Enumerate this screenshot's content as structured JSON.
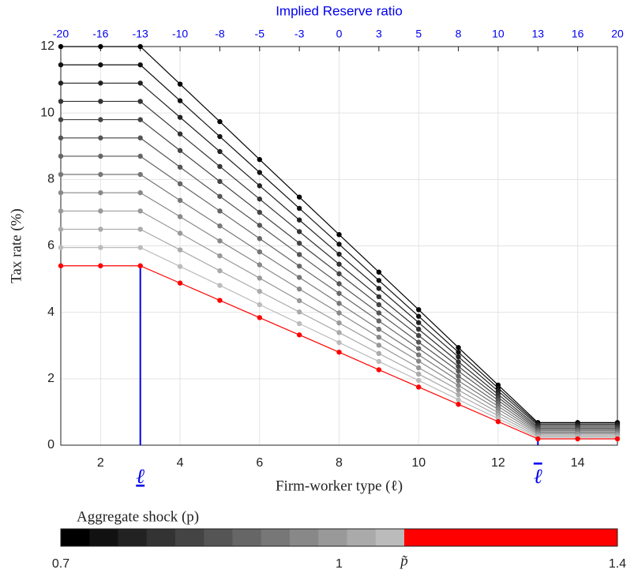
{
  "chart_data": {
    "type": "line",
    "title": "Implied Reserve ratio",
    "xlabel": "Firm-worker type (ℓ)",
    "ylabel": "Tax rate (%)",
    "x": [
      1,
      2,
      3,
      4,
      5,
      6,
      7,
      8,
      9,
      10,
      11,
      12,
      13,
      14,
      15
    ],
    "xlim": [
      1,
      15
    ],
    "ylim": [
      0,
      12
    ],
    "xticks": [
      2,
      4,
      6,
      8,
      10,
      12,
      14
    ],
    "yticks": [
      0,
      2,
      4,
      6,
      8,
      10,
      12
    ],
    "x2ticks": [
      {
        "value": 1,
        "label": "-20"
      },
      {
        "value": 2,
        "label": "-16"
      },
      {
        "value": 3,
        "label": "-13"
      },
      {
        "value": 4,
        "label": "-10"
      },
      {
        "value": 5,
        "label": "-8"
      },
      {
        "value": 6,
        "label": "-5"
      },
      {
        "value": 7,
        "label": "-3"
      },
      {
        "value": 8,
        "label": "0"
      },
      {
        "value": 9,
        "label": "3"
      },
      {
        "value": 10,
        "label": "5"
      },
      {
        "value": 11,
        "label": "8"
      },
      {
        "value": 12,
        "label": "10"
      },
      {
        "value": 13,
        "label": "13"
      },
      {
        "value": 14,
        "label": "16"
      },
      {
        "value": 15,
        "label": "20"
      }
    ],
    "grid": true,
    "series": [
      {
        "color": "#000000",
        "values": [
          12,
          12,
          12,
          10.87,
          9.74,
          8.6,
          7.47,
          6.34,
          5.21,
          4.08,
          2.94,
          1.81,
          0.68,
          0.68,
          0.68
        ]
      },
      {
        "color": "#111111",
        "values": [
          11.45,
          11.45,
          11.45,
          10.37,
          9.29,
          8.21,
          7.13,
          6.05,
          4.96,
          3.88,
          2.8,
          1.72,
          0.64,
          0.64,
          0.64
        ]
      },
      {
        "color": "#222222",
        "values": [
          10.9,
          10.9,
          10.9,
          9.87,
          8.84,
          7.81,
          6.78,
          5.75,
          4.72,
          3.69,
          2.66,
          1.63,
          0.6,
          0.6,
          0.6
        ]
      },
      {
        "color": "#333333",
        "values": [
          10.35,
          10.35,
          10.35,
          9.37,
          8.39,
          7.41,
          6.43,
          5.45,
          4.47,
          3.49,
          2.51,
          1.53,
          0.55,
          0.55,
          0.55
        ]
      },
      {
        "color": "#444444",
        "values": [
          9.8,
          9.8,
          9.8,
          8.87,
          7.94,
          7.01,
          6.08,
          5.16,
          4.23,
          3.3,
          2.37,
          1.44,
          0.51,
          0.51,
          0.51
        ]
      },
      {
        "color": "#555555",
        "values": [
          9.25,
          9.25,
          9.25,
          8.37,
          7.49,
          6.62,
          5.74,
          4.86,
          3.98,
          3.1,
          2.23,
          1.35,
          0.47,
          0.47,
          0.47
        ]
      },
      {
        "color": "#666666",
        "values": [
          8.7,
          8.7,
          8.7,
          7.87,
          7.05,
          6.22,
          5.39,
          4.57,
          3.74,
          2.91,
          2.08,
          1.26,
          0.43,
          0.43,
          0.43
        ]
      },
      {
        "color": "#777777",
        "values": [
          8.15,
          8.15,
          8.15,
          7.37,
          6.6,
          5.82,
          5.05,
          4.27,
          3.49,
          2.72,
          1.94,
          1.17,
          0.39,
          0.39,
          0.39
        ]
      },
      {
        "color": "#888888",
        "values": [
          7.6,
          7.6,
          7.6,
          6.88,
          6.15,
          5.43,
          4.7,
          3.98,
          3.25,
          2.53,
          1.8,
          1.08,
          0.35,
          0.35,
          0.35
        ]
      },
      {
        "color": "#999999",
        "values": [
          7.05,
          7.05,
          7.05,
          6.38,
          5.7,
          5.03,
          4.35,
          3.68,
          3.01,
          2.33,
          1.66,
          0.98,
          0.31,
          0.31,
          0.31
        ]
      },
      {
        "color": "#aaaaaa",
        "values": [
          6.5,
          6.5,
          6.5,
          5.88,
          5.25,
          4.63,
          4.01,
          3.39,
          2.76,
          2.14,
          1.52,
          0.89,
          0.27,
          0.27,
          0.27
        ]
      },
      {
        "color": "#bbbbbb",
        "values": [
          5.95,
          5.95,
          5.95,
          5.38,
          4.81,
          4.23,
          3.66,
          3.09,
          2.52,
          1.95,
          1.37,
          0.8,
          0.23,
          0.23,
          0.23
        ]
      },
      {
        "color": "#ff0000",
        "values": [
          5.4,
          5.4,
          5.4,
          4.88,
          4.36,
          3.84,
          3.32,
          2.8,
          2.27,
          1.75,
          1.23,
          0.71,
          0.19,
          0.19,
          0.19
        ]
      }
    ],
    "markers": [
      {
        "x": 3,
        "y": 5.4,
        "label": "ℓ",
        "color": "#0000ee"
      },
      {
        "x": 13,
        "y": 0.19,
        "label": "ℓ",
        "color": "#0000ee"
      }
    ],
    "colorbar": {
      "title": "Aggregate shock (p)",
      "ticks": [
        0.7,
        1,
        1.4
      ],
      "marker_label": "p̃"
    }
  }
}
